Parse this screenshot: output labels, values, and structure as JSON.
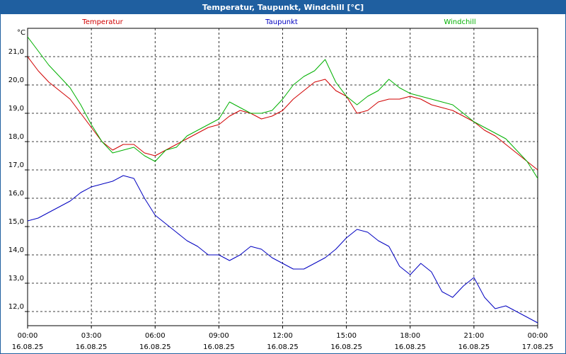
{
  "window": {
    "title": "Temperatur, Taupunkt, Windchill [°C]"
  },
  "colors": {
    "titlebar": "#1f5fa0",
    "temperatur": "#d00000",
    "taupunkt": "#0000c0",
    "windchill": "#00b000",
    "grid": "#000000"
  },
  "chart_data": {
    "type": "line",
    "title": "Temperatur, Taupunkt, Windchill [°C]",
    "ylabel": "°C",
    "xlabel": "",
    "ylim": [
      11.5,
      22.0
    ],
    "xlim": [
      0,
      24
    ],
    "grid": true,
    "yticks": [
      12.0,
      13.0,
      14.0,
      15.0,
      16.0,
      17.0,
      18.0,
      19.0,
      20.0,
      21.0
    ],
    "ytick_labels": [
      "12,0",
      "13,0",
      "14,0",
      "15,0",
      "16,0",
      "17,0",
      "18,0",
      "19,0",
      "20,0",
      "21,0"
    ],
    "xticks": [
      {
        "time": "00:00",
        "date": "16.08.25"
      },
      {
        "time": "03:00",
        "date": "16.08.25"
      },
      {
        "time": "06:00",
        "date": "16.08.25"
      },
      {
        "time": "09:00",
        "date": "16.08.25"
      },
      {
        "time": "12:00",
        "date": "16.08.25"
      },
      {
        "time": "15:00",
        "date": "16.08.25"
      },
      {
        "time": "18:00",
        "date": "16.08.25"
      },
      {
        "time": "21:00",
        "date": "16.08.25"
      },
      {
        "time": "00:00",
        "date": "17.08.25"
      }
    ],
    "series": [
      {
        "name": "Temperatur",
        "color": "#d00000",
        "x": [
          0,
          0.5,
          1,
          1.5,
          2,
          2.5,
          3,
          3.5,
          4,
          4.5,
          5,
          5.5,
          6,
          6.5,
          7,
          7.5,
          8,
          8.5,
          9,
          9.5,
          10,
          10.5,
          11,
          11.5,
          12,
          12.5,
          13,
          13.5,
          14,
          14.5,
          15,
          15.5,
          16,
          16.5,
          17,
          17.5,
          18,
          18.5,
          19,
          19.5,
          20,
          20.5,
          21,
          21.5,
          22,
          22.5,
          23,
          23.5,
          24
        ],
        "values": [
          21.0,
          20.5,
          20.1,
          19.8,
          19.5,
          19.0,
          18.5,
          18.0,
          17.7,
          17.9,
          17.9,
          17.6,
          17.5,
          17.7,
          17.9,
          18.1,
          18.3,
          18.5,
          18.6,
          18.9,
          19.1,
          19.0,
          18.8,
          18.9,
          19.1,
          19.5,
          19.8,
          20.1,
          20.2,
          19.8,
          19.6,
          19.0,
          19.1,
          19.4,
          19.5,
          19.5,
          19.6,
          19.5,
          19.3,
          19.2,
          19.1,
          18.9,
          18.7,
          18.4,
          18.2,
          17.9,
          17.6,
          17.3,
          17.0
        ]
      },
      {
        "name": "Taupunkt",
        "color": "#0000c0",
        "x": [
          0,
          0.5,
          1,
          1.5,
          2,
          2.5,
          3,
          3.5,
          4,
          4.5,
          5,
          5.5,
          6,
          6.5,
          7,
          7.5,
          8,
          8.5,
          9,
          9.5,
          10,
          10.5,
          11,
          11.5,
          12,
          12.5,
          13,
          13.5,
          14,
          14.5,
          15,
          15.5,
          16,
          16.5,
          17,
          17.5,
          18,
          18.5,
          19,
          19.5,
          20,
          20.5,
          21,
          21.5,
          22,
          22.5,
          23,
          23.5,
          24
        ],
        "values": [
          15.2,
          15.3,
          15.5,
          15.7,
          15.9,
          16.2,
          16.4,
          16.5,
          16.6,
          16.8,
          16.7,
          16.0,
          15.4,
          15.1,
          14.8,
          14.5,
          14.3,
          14.0,
          14.0,
          13.8,
          14.0,
          14.3,
          14.2,
          13.9,
          13.7,
          13.5,
          13.5,
          13.7,
          13.9,
          14.2,
          14.6,
          14.9,
          14.8,
          14.5,
          14.3,
          13.6,
          13.3,
          13.7,
          13.4,
          12.7,
          12.5,
          12.9,
          13.2,
          12.5,
          12.1,
          12.2,
          12.0,
          11.8,
          11.6
        ]
      },
      {
        "name": "Windchill",
        "color": "#00b000",
        "x": [
          0,
          0.5,
          1,
          1.5,
          2,
          2.5,
          3,
          3.5,
          4,
          4.5,
          5,
          5.5,
          6,
          6.5,
          7,
          7.5,
          8,
          8.5,
          9,
          9.5,
          10,
          10.5,
          11,
          11.5,
          12,
          12.5,
          13,
          13.5,
          14,
          14.5,
          15,
          15.5,
          16,
          16.5,
          17,
          17.5,
          18,
          18.5,
          19,
          19.5,
          20,
          20.5,
          21,
          21.5,
          22,
          22.5,
          23,
          23.5,
          24
        ],
        "values": [
          21.7,
          21.2,
          20.7,
          20.3,
          19.9,
          19.3,
          18.6,
          18.0,
          17.6,
          17.7,
          17.8,
          17.5,
          17.3,
          17.7,
          17.8,
          18.2,
          18.4,
          18.6,
          18.8,
          19.4,
          19.2,
          19.0,
          19.0,
          19.1,
          19.5,
          20.0,
          20.3,
          20.5,
          20.9,
          20.1,
          19.6,
          19.3,
          19.6,
          19.8,
          20.2,
          19.9,
          19.7,
          19.6,
          19.5,
          19.4,
          19.3,
          19.0,
          18.7,
          18.5,
          18.3,
          18.1,
          17.7,
          17.3,
          16.7
        ]
      }
    ]
  }
}
